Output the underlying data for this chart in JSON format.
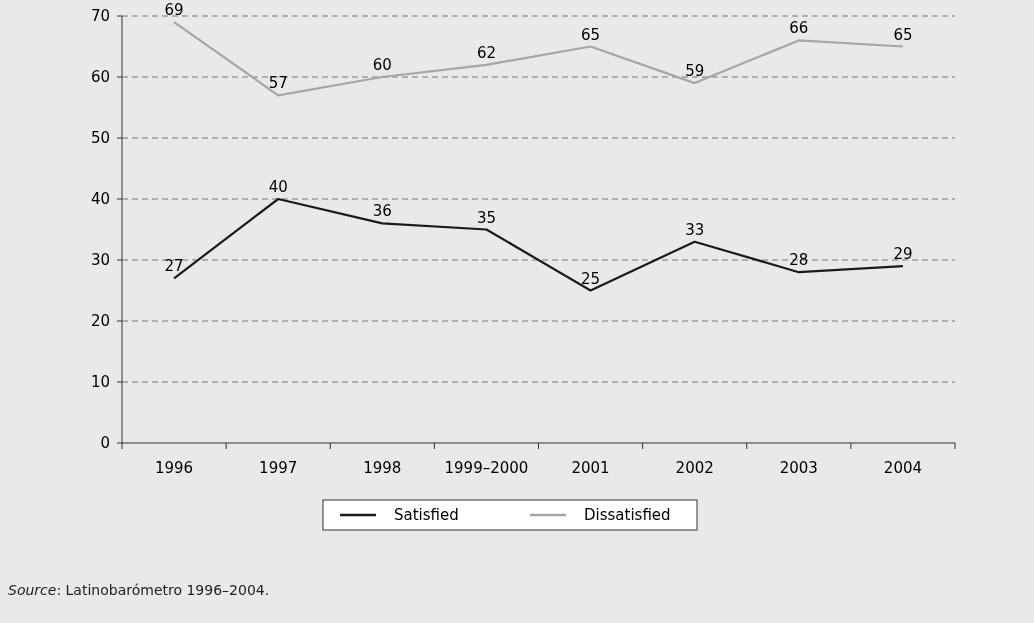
{
  "chart_data": {
    "type": "line",
    "categories": [
      "1996",
      "1997",
      "1998",
      "1999–2000",
      "2001",
      "2002",
      "2003",
      "2004"
    ],
    "series": [
      {
        "name": "Satisfied",
        "color": "#1a1a1a",
        "values": [
          27,
          40,
          36,
          35,
          25,
          33,
          28,
          29
        ]
      },
      {
        "name": "Dissatisfied",
        "color": "#a6a6a6",
        "values": [
          69,
          57,
          60,
          62,
          65,
          59,
          66,
          65
        ]
      }
    ],
    "ylim": [
      0,
      70
    ],
    "yticks": [
      0,
      10,
      20,
      30,
      40,
      50,
      60,
      70
    ],
    "grid": "y",
    "legend": "bottom",
    "data_labels": true,
    "marker": "none",
    "line_style": "solid",
    "annotations": [
      "Source: Latinobarómetro 1996–2004."
    ]
  }
}
